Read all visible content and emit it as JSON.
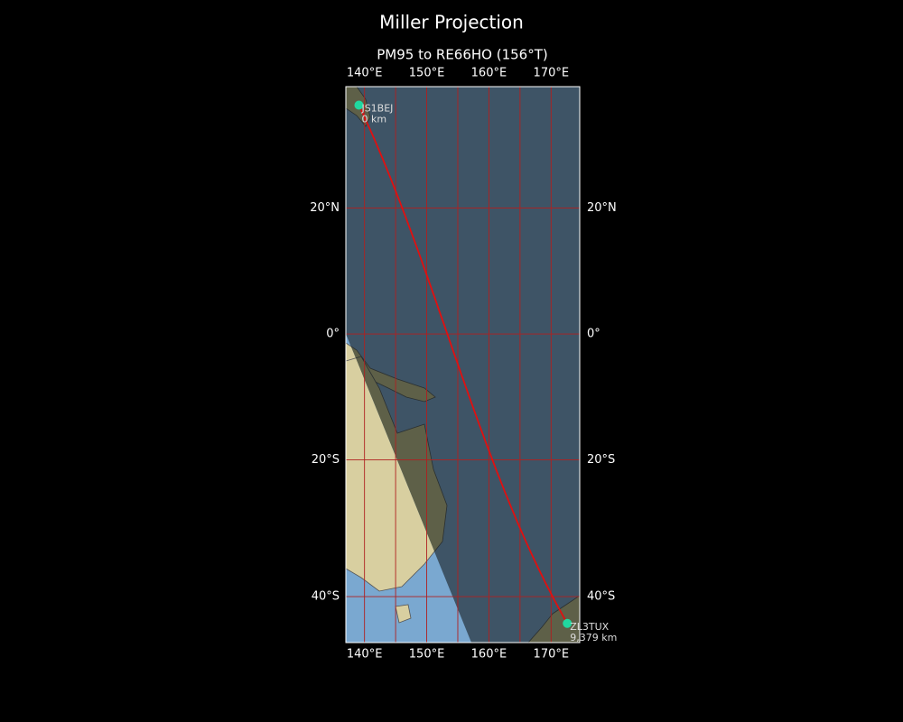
{
  "map": {
    "title": "Miller Projection",
    "subtitle": "PM95 to RE66HO (156°T)",
    "lonlim": [
      137,
      174.6
    ],
    "latlim": [
      -46.1,
      37.9
    ],
    "lon_ticks": [
      {
        "value": 140,
        "label": "140°E"
      },
      {
        "value": 150,
        "label": "150°E"
      },
      {
        "value": 160,
        "label": "160°E"
      },
      {
        "value": 170,
        "label": "170°E"
      }
    ],
    "lat_ticks": [
      {
        "value": 20,
        "label": "20°N"
      },
      {
        "value": 0,
        "label": "0°"
      },
      {
        "value": -20,
        "label": "20°S"
      },
      {
        "value": -40,
        "label": "40°S"
      }
    ],
    "lon_gridlines": [
      140,
      145,
      150,
      155,
      160,
      165,
      170
    ],
    "path_color": "#e01010",
    "station_color": "#20d8a0",
    "stations": [
      {
        "name": "JS1BEJ",
        "distance": "0 km",
        "lon": 139.1,
        "lat": 35.3
      },
      {
        "name": "ZL3TUX",
        "distance": "9,379 km",
        "lon": 172.6,
        "lat": -43.6
      }
    ]
  }
}
